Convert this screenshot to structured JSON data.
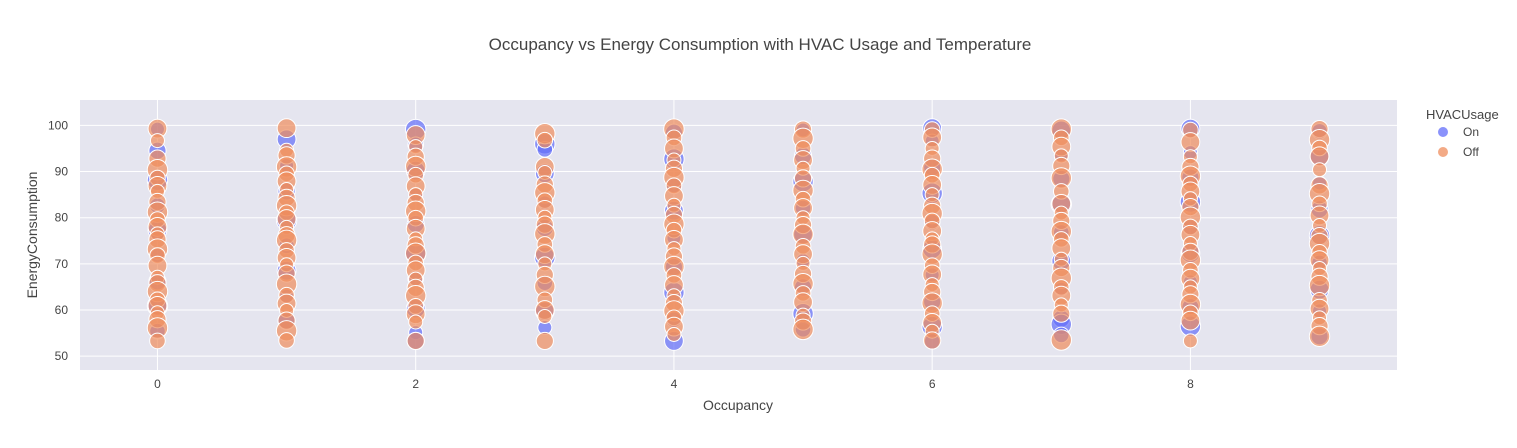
{
  "chart_data": {
    "type": "scatter",
    "title": "Occupancy vs Energy Consumption with HVAC Usage and Temperature",
    "xlabel": "Occupancy",
    "ylabel": "EnergyConsumption",
    "xlim": [
      -0.6,
      9.6
    ],
    "ylim": [
      47,
      105.5
    ],
    "x_ticks": [
      0,
      2,
      4,
      6,
      8
    ],
    "y_ticks": [
      50,
      60,
      70,
      80,
      90,
      100
    ],
    "grid": true,
    "legend": {
      "title": "HVACUsage",
      "position": "top-right"
    },
    "marker_size_note": "marker size encodes Temperature",
    "series": [
      {
        "name": "On",
        "color": "#636efa",
        "points": [
          [
            0,
            99.2
          ],
          [
            0,
            94.5
          ],
          [
            0,
            88.1
          ],
          [
            0,
            82.6
          ],
          [
            0,
            77.3
          ],
          [
            0,
            71.8
          ],
          [
            0,
            66.2
          ],
          [
            0,
            60.9
          ],
          [
            0,
            55.4
          ],
          [
            1,
            97.0
          ],
          [
            1,
            91.3
          ],
          [
            1,
            85.7
          ],
          [
            1,
            79.4
          ],
          [
            1,
            73.9
          ],
          [
            1,
            68.5
          ],
          [
            1,
            63.0
          ],
          [
            1,
            57.6
          ],
          [
            2,
            99.1
          ],
          [
            2,
            95.8
          ],
          [
            2,
            90.2
          ],
          [
            2,
            84.9
          ],
          [
            2,
            78.6
          ],
          [
            2,
            72.2
          ],
          [
            2,
            66.8
          ],
          [
            2,
            60.3
          ],
          [
            2,
            55.1
          ],
          [
            2,
            53.3
          ],
          [
            3,
            96.0
          ],
          [
            3,
            94.8
          ],
          [
            3,
            89.6
          ],
          [
            3,
            83.2
          ],
          [
            3,
            77.8
          ],
          [
            3,
            71.4
          ],
          [
            3,
            65.9
          ],
          [
            3,
            59.7
          ],
          [
            3,
            56.2
          ],
          [
            4,
            98.4
          ],
          [
            4,
            92.7
          ],
          [
            4,
            87.1
          ],
          [
            4,
            81.5
          ],
          [
            4,
            75.6
          ],
          [
            4,
            69.3
          ],
          [
            4,
            63.8
          ],
          [
            4,
            57.9
          ],
          [
            4,
            53.3
          ],
          [
            5,
            99.0
          ],
          [
            5,
            93.4
          ],
          [
            5,
            87.8
          ],
          [
            5,
            82.1
          ],
          [
            5,
            76.4
          ],
          [
            5,
            70.7
          ],
          [
            5,
            64.9
          ],
          [
            5,
            59.2
          ],
          [
            5,
            55.8
          ],
          [
            6,
            99.4
          ],
          [
            6,
            96.6
          ],
          [
            6,
            90.9
          ],
          [
            6,
            85.3
          ],
          [
            6,
            79.0
          ],
          [
            6,
            73.2
          ],
          [
            6,
            67.6
          ],
          [
            6,
            61.8
          ],
          [
            6,
            56.4
          ],
          [
            6,
            53.2
          ],
          [
            7,
            98.9
          ],
          [
            7,
            93.6
          ],
          [
            7,
            88.4
          ],
          [
            7,
            82.9
          ],
          [
            7,
            76.8
          ],
          [
            7,
            70.6
          ],
          [
            7,
            64.5
          ],
          [
            7,
            58.1
          ],
          [
            7,
            56.9
          ],
          [
            7,
            54.6
          ],
          [
            8,
            99.3
          ],
          [
            8,
            94.1
          ],
          [
            8,
            88.7
          ],
          [
            8,
            83.4
          ],
          [
            8,
            77.9
          ],
          [
            8,
            72.3
          ],
          [
            8,
            66.1
          ],
          [
            8,
            60.6
          ],
          [
            8,
            56.5
          ],
          [
            9,
            98.7
          ],
          [
            9,
            93.2
          ],
          [
            9,
            87.5
          ],
          [
            9,
            81.8
          ],
          [
            9,
            76.1
          ],
          [
            9,
            70.2
          ],
          [
            9,
            64.4
          ],
          [
            9,
            59.8
          ],
          [
            9,
            54.3
          ]
        ]
      },
      {
        "name": "Off",
        "color": "#ef8d5d",
        "points": [
          [
            0,
            99.3
          ],
          [
            0,
            96.7
          ],
          [
            0,
            92.8
          ],
          [
            0,
            90.4
          ],
          [
            0,
            88.6
          ],
          [
            0,
            86.9
          ],
          [
            0,
            85.7
          ],
          [
            0,
            83.4
          ],
          [
            0,
            81.2
          ],
          [
            0,
            79.6
          ],
          [
            0,
            78.0
          ],
          [
            0,
            76.5
          ],
          [
            0,
            75.3
          ],
          [
            0,
            73.2
          ],
          [
            0,
            71.8
          ],
          [
            0,
            69.6
          ],
          [
            0,
            67.1
          ],
          [
            0,
            65.8
          ],
          [
            0,
            64.0
          ],
          [
            0,
            62.2
          ],
          [
            0,
            60.9
          ],
          [
            0,
            59.4
          ],
          [
            0,
            58.0
          ],
          [
            0,
            56.1
          ],
          [
            0,
            53.3
          ],
          [
            1,
            99.4
          ],
          [
            1,
            94.6
          ],
          [
            1,
            93.5
          ],
          [
            1,
            91.0
          ],
          [
            1,
            89.5
          ],
          [
            1,
            87.9
          ],
          [
            1,
            86.1
          ],
          [
            1,
            84.3
          ],
          [
            1,
            82.6
          ],
          [
            1,
            81.1
          ],
          [
            1,
            79.7
          ],
          [
            1,
            77.9
          ],
          [
            1,
            76.2
          ],
          [
            1,
            75.1
          ],
          [
            1,
            72.9
          ],
          [
            1,
            71.3
          ],
          [
            1,
            69.8
          ],
          [
            1,
            67.9
          ],
          [
            1,
            65.6
          ],
          [
            1,
            63.2
          ],
          [
            1,
            61.4
          ],
          [
            1,
            59.9
          ],
          [
            1,
            57.7
          ],
          [
            1,
            55.5
          ],
          [
            1,
            53.4
          ],
          [
            2,
            97.9
          ],
          [
            2,
            95.4
          ],
          [
            2,
            93.2
          ],
          [
            2,
            91.1
          ],
          [
            2,
            89.2
          ],
          [
            2,
            86.8
          ],
          [
            2,
            85.0
          ],
          [
            2,
            83.2
          ],
          [
            2,
            81.4
          ],
          [
            2,
            79.9
          ],
          [
            2,
            77.6
          ],
          [
            2,
            75.4
          ],
          [
            2,
            74.0
          ],
          [
            2,
            72.3
          ],
          [
            2,
            70.2
          ],
          [
            2,
            68.6
          ],
          [
            2,
            66.7
          ],
          [
            2,
            64.8
          ],
          [
            2,
            63.1
          ],
          [
            2,
            60.8
          ],
          [
            2,
            59.1
          ],
          [
            2,
            57.4
          ],
          [
            2,
            53.3
          ],
          [
            3,
            98.2
          ],
          [
            3,
            96.8
          ],
          [
            3,
            91.0
          ],
          [
            3,
            89.8
          ],
          [
            3,
            87.2
          ],
          [
            3,
            85.4
          ],
          [
            3,
            83.7
          ],
          [
            3,
            81.7
          ],
          [
            3,
            80.1
          ],
          [
            3,
            78.5
          ],
          [
            3,
            76.5
          ],
          [
            3,
            74.2
          ],
          [
            3,
            72.1
          ],
          [
            3,
            70.0
          ],
          [
            3,
            67.6
          ],
          [
            3,
            65.1
          ],
          [
            3,
            62.2
          ],
          [
            3,
            60.0
          ],
          [
            3,
            58.6
          ],
          [
            3,
            53.3
          ],
          [
            4,
            99.2
          ],
          [
            4,
            97.3
          ],
          [
            4,
            95.0
          ],
          [
            4,
            92.5
          ],
          [
            4,
            90.6
          ],
          [
            4,
            88.7
          ],
          [
            4,
            86.9
          ],
          [
            4,
            84.7
          ],
          [
            4,
            82.7
          ],
          [
            4,
            80.6
          ],
          [
            4,
            78.6
          ],
          [
            4,
            77.3
          ],
          [
            4,
            75.2
          ],
          [
            4,
            73.3
          ],
          [
            4,
            71.6
          ],
          [
            4,
            69.4
          ],
          [
            4,
            67.5
          ],
          [
            4,
            65.4
          ],
          [
            4,
            63.1
          ],
          [
            4,
            61.5
          ],
          [
            4,
            59.8
          ],
          [
            4,
            58.3
          ],
          [
            4,
            56.4
          ],
          [
            4,
            54.7
          ],
          [
            5,
            99.1
          ],
          [
            5,
            97.2
          ],
          [
            5,
            95.0
          ],
          [
            5,
            92.5
          ],
          [
            5,
            90.7
          ],
          [
            5,
            88.5
          ],
          [
            5,
            85.9
          ],
          [
            5,
            84.0
          ],
          [
            5,
            82.1
          ],
          [
            5,
            80.0
          ],
          [
            5,
            78.4
          ],
          [
            5,
            76.4
          ],
          [
            5,
            73.8
          ],
          [
            5,
            72.1
          ],
          [
            5,
            70.1
          ],
          [
            5,
            67.8
          ],
          [
            5,
            65.7
          ],
          [
            5,
            63.6
          ],
          [
            5,
            61.7
          ],
          [
            5,
            58.9
          ],
          [
            5,
            57.5
          ],
          [
            5,
            55.8
          ],
          [
            6,
            99.1
          ],
          [
            6,
            97.4
          ],
          [
            6,
            95.0
          ],
          [
            6,
            92.8
          ],
          [
            6,
            90.5
          ],
          [
            6,
            89.2
          ],
          [
            6,
            87.1
          ],
          [
            6,
            85.0
          ],
          [
            6,
            82.6
          ],
          [
            6,
            80.9
          ],
          [
            6,
            79.3
          ],
          [
            6,
            77.1
          ],
          [
            6,
            75.4
          ],
          [
            6,
            74.2
          ],
          [
            6,
            72.1
          ],
          [
            6,
            69.6
          ],
          [
            6,
            67.7
          ],
          [
            6,
            65.5
          ],
          [
            6,
            63.9
          ],
          [
            6,
            61.5
          ],
          [
            6,
            59.2
          ],
          [
            6,
            57.2
          ],
          [
            6,
            55.4
          ],
          [
            6,
            53.4
          ],
          [
            7,
            99.2
          ],
          [
            7,
            97.3
          ],
          [
            7,
            95.4
          ],
          [
            7,
            93.4
          ],
          [
            7,
            91.2
          ],
          [
            7,
            88.6
          ],
          [
            7,
            85.7
          ],
          [
            7,
            83.0
          ],
          [
            7,
            81.0
          ],
          [
            7,
            79.3
          ],
          [
            7,
            77.0
          ],
          [
            7,
            75.3
          ],
          [
            7,
            73.4
          ],
          [
            7,
            71.0
          ],
          [
            7,
            69.1
          ],
          [
            7,
            66.9
          ],
          [
            7,
            64.9
          ],
          [
            7,
            63.1
          ],
          [
            7,
            61.1
          ],
          [
            7,
            59.2
          ],
          [
            7,
            53.5
          ],
          [
            8,
            99.0
          ],
          [
            8,
            96.4
          ],
          [
            8,
            93.2
          ],
          [
            8,
            91.0
          ],
          [
            8,
            89.0
          ],
          [
            8,
            87.3
          ],
          [
            8,
            85.7
          ],
          [
            8,
            84.1
          ],
          [
            8,
            82.3
          ],
          [
            8,
            80.1
          ],
          [
            8,
            78.0
          ],
          [
            8,
            76.3
          ],
          [
            8,
            74.4
          ],
          [
            8,
            72.6
          ],
          [
            8,
            70.8
          ],
          [
            8,
            68.6
          ],
          [
            8,
            66.8
          ],
          [
            8,
            65.0
          ],
          [
            8,
            63.4
          ],
          [
            8,
            61.2
          ],
          [
            8,
            59.4
          ],
          [
            8,
            57.7
          ],
          [
            8,
            53.3
          ],
          [
            9,
            99.2
          ],
          [
            9,
            96.9
          ],
          [
            9,
            95.1
          ],
          [
            9,
            93.3
          ],
          [
            9,
            90.4
          ],
          [
            9,
            87.0
          ],
          [
            9,
            85.2
          ],
          [
            9,
            83.0
          ],
          [
            9,
            80.5
          ],
          [
            9,
            78.3
          ],
          [
            9,
            76.0
          ],
          [
            9,
            74.4
          ],
          [
            9,
            72.5
          ],
          [
            9,
            70.8
          ],
          [
            9,
            69.0
          ],
          [
            9,
            67.2
          ],
          [
            9,
            65.3
          ],
          [
            9,
            62.1
          ],
          [
            9,
            60.3
          ],
          [
            9,
            58.3
          ],
          [
            9,
            56.5
          ],
          [
            9,
            54.3
          ]
        ]
      }
    ]
  }
}
